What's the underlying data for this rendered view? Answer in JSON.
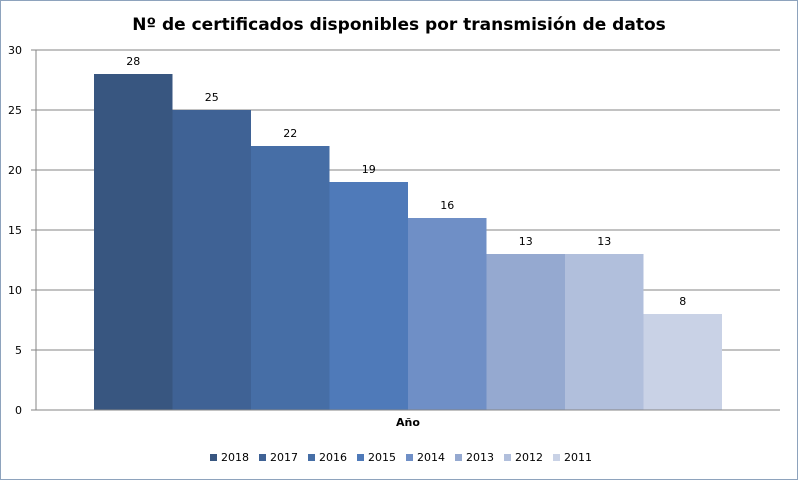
{
  "chart_data": {
    "type": "bar",
    "title": "Nº de certificados disponibles por transmisión de datos",
    "xlabel": "Año",
    "ylabel": "",
    "categories": [
      "Año"
    ],
    "series": [
      {
        "name": "2018",
        "values": [
          28
        ],
        "color": "#385680"
      },
      {
        "name": "2017",
        "values": [
          25
        ],
        "color": "#3f6295"
      },
      {
        "name": "2016",
        "values": [
          22
        ],
        "color": "#466ea6"
      },
      {
        "name": "2015",
        "values": [
          19
        ],
        "color": "#4f7ab9"
      },
      {
        "name": "2014",
        "values": [
          16
        ],
        "color": "#6f8fc6"
      },
      {
        "name": "2013",
        "values": [
          13
        ],
        "color": "#95a9d0"
      },
      {
        "name": "2012",
        "values": [
          13
        ],
        "color": "#b1bfdc"
      },
      {
        "name": "2011",
        "values": [
          8
        ],
        "color": "#c9d2e6"
      }
    ],
    "ylim": [
      0,
      30
    ],
    "yticks": [
      0,
      5,
      10,
      15,
      20,
      25,
      30
    ],
    "grid": true,
    "legend": "bottom"
  }
}
